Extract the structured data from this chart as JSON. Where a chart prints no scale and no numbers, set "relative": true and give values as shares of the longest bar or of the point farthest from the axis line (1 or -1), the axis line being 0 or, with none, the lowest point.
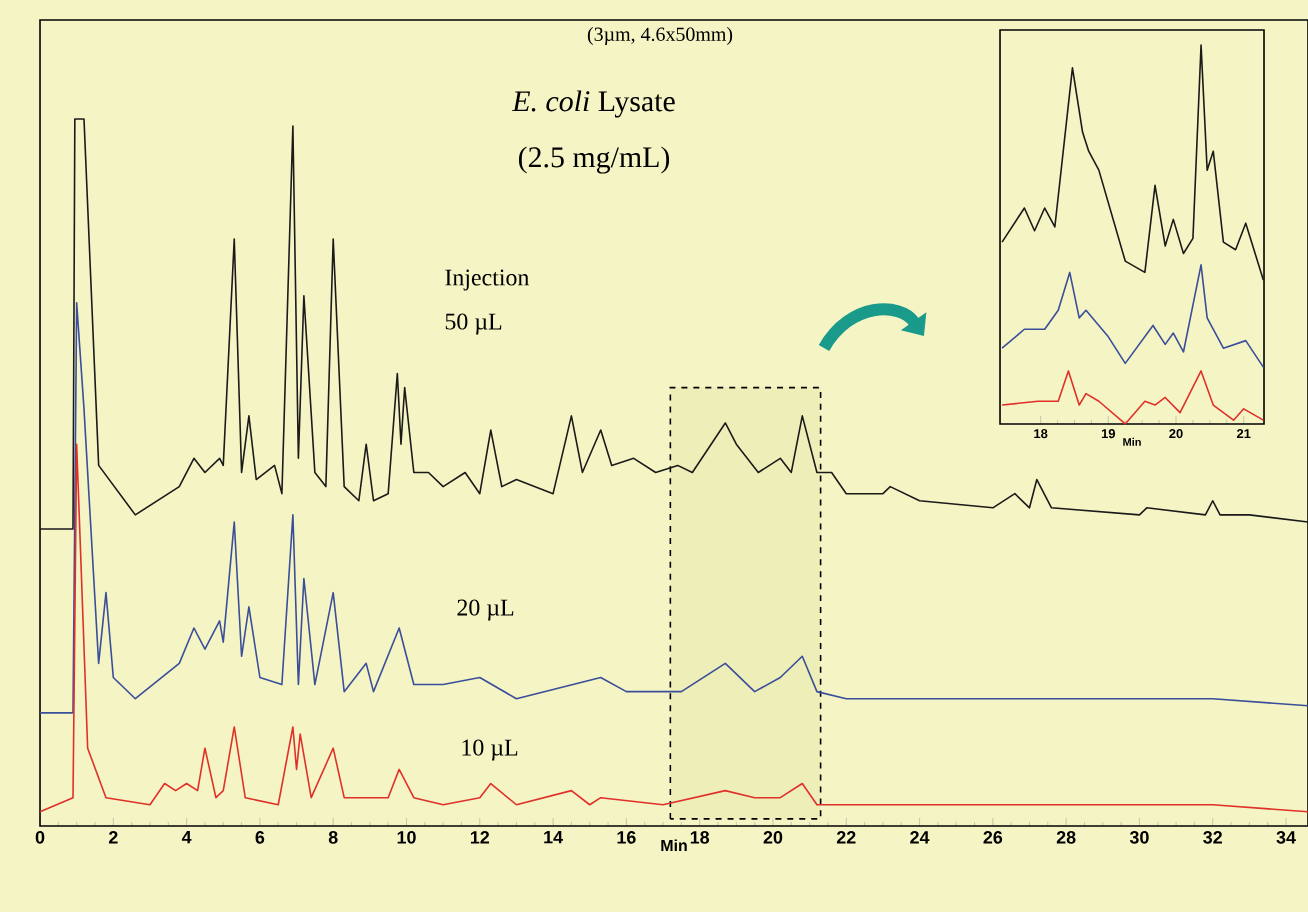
{
  "chart_data": [
    {
      "type": "line",
      "relative": true,
      "marker": "none",
      "line_style": "solid",
      "tick_labels": "x",
      "xlabel": "Min",
      "xlim": [
        0,
        34.6
      ],
      "xticks": [
        0,
        2,
        4,
        6,
        8,
        10,
        12,
        14,
        16,
        18,
        20,
        22,
        24,
        26,
        28,
        30,
        32,
        34
      ],
      "annotations": [
        "(3µm, 4.6x50mm)",
        "*E. coli* Lysate",
        "(2.5 mg/mL)",
        "Injection",
        "50 µL",
        "20 µL",
        "10 µL"
      ],
      "bands": [
        {
          "axis": "x",
          "from": 17.2,
          "to": 21.3
        }
      ],
      "series": [
        {
          "color": "#1a1a1a",
          "x": [
            0,
            0.9,
            0.95,
            1.2,
            1.6,
            2.6,
            3.8,
            4.2,
            4.5,
            4.9,
            5.0,
            5.3,
            5.5,
            5.7,
            5.9,
            6.4,
            6.6,
            6.9,
            7.05,
            7.2,
            7.5,
            7.8,
            8.0,
            8.3,
            8.7,
            8.9,
            9.1,
            9.5,
            9.75,
            9.85,
            9.95,
            10.2,
            10.6,
            11,
            11.6,
            12.0,
            12.3,
            12.6,
            13,
            14.0,
            14.5,
            14.8,
            15.3,
            15.6,
            16.2,
            16.8,
            17.4,
            17.8,
            18.7,
            19.0,
            19.6,
            20.2,
            20.5,
            20.8,
            21.2,
            21.6,
            22,
            23,
            23.2,
            24,
            26,
            26.6,
            27,
            27.2,
            27.6,
            30,
            30.2,
            31.8,
            32,
            32.2,
            33,
            34.6
          ],
          "values": [
            0.42,
            0.42,
            1.0,
            1.0,
            0.51,
            0.44,
            0.48,
            0.52,
            0.5,
            0.52,
            0.51,
            0.83,
            0.5,
            0.58,
            0.49,
            0.51,
            0.47,
            0.99,
            0.52,
            0.75,
            0.5,
            0.48,
            0.83,
            0.48,
            0.46,
            0.54,
            0.46,
            0.47,
            0.64,
            0.54,
            0.62,
            0.5,
            0.5,
            0.48,
            0.5,
            0.47,
            0.56,
            0.48,
            0.49,
            0.47,
            0.58,
            0.5,
            0.56,
            0.51,
            0.52,
            0.5,
            0.51,
            0.5,
            0.57,
            0.54,
            0.5,
            0.52,
            0.5,
            0.58,
            0.5,
            0.5,
            0.47,
            0.47,
            0.48,
            0.46,
            0.45,
            0.47,
            0.45,
            0.49,
            0.45,
            0.44,
            0.45,
            0.44,
            0.46,
            0.44,
            0.44,
            0.43
          ]
        },
        {
          "color": "#3a4e9a",
          "x": [
            0,
            0.9,
            1.0,
            1.2,
            1.6,
            1.8,
            2.0,
            2.6,
            3.8,
            4.2,
            4.5,
            4.9,
            5.0,
            5.3,
            5.5,
            5.7,
            6.0,
            6.6,
            6.9,
            7.05,
            7.2,
            7.5,
            8.0,
            8.3,
            8.9,
            9.1,
            9.8,
            10.2,
            11,
            12,
            13,
            15.3,
            16,
            17.5,
            18.7,
            19.5,
            20.2,
            20.8,
            21.2,
            22,
            24,
            27.2,
            30,
            32,
            34.6
          ],
          "values": [
            0.16,
            0.16,
            0.74,
            0.59,
            0.23,
            0.33,
            0.21,
            0.18,
            0.23,
            0.28,
            0.25,
            0.29,
            0.26,
            0.43,
            0.24,
            0.31,
            0.21,
            0.2,
            0.44,
            0.2,
            0.35,
            0.2,
            0.33,
            0.19,
            0.23,
            0.19,
            0.28,
            0.2,
            0.2,
            0.21,
            0.18,
            0.21,
            0.19,
            0.19,
            0.23,
            0.19,
            0.21,
            0.24,
            0.19,
            0.18,
            0.18,
            0.18,
            0.18,
            0.18,
            0.17
          ]
        },
        {
          "color": "#e0302a",
          "x": [
            0,
            0.9,
            1.0,
            1.3,
            1.8,
            3,
            3.4,
            3.7,
            4.0,
            4.3,
            4.5,
            4.8,
            5.0,
            5.3,
            5.6,
            6.5,
            6.9,
            7.0,
            7.1,
            7.4,
            8.0,
            8.3,
            9.5,
            9.8,
            10.2,
            11,
            12,
            12.3,
            13,
            14.5,
            15,
            15.3,
            17,
            18.7,
            19.5,
            20.2,
            20.8,
            21.2,
            24,
            27,
            30,
            32,
            34.6
          ],
          "values": [
            0.02,
            0.04,
            0.54,
            0.11,
            0.04,
            0.03,
            0.06,
            0.05,
            0.06,
            0.05,
            0.11,
            0.04,
            0.05,
            0.14,
            0.04,
            0.03,
            0.14,
            0.08,
            0.13,
            0.04,
            0.11,
            0.04,
            0.04,
            0.08,
            0.04,
            0.03,
            0.04,
            0.06,
            0.03,
            0.05,
            0.03,
            0.04,
            0.03,
            0.05,
            0.04,
            0.04,
            0.06,
            0.03,
            0.03,
            0.03,
            0.03,
            0.03,
            0.02
          ]
        }
      ]
    },
    {
      "type": "line",
      "relative": true,
      "marker": "none",
      "line_style": "solid",
      "tick_labels": "x",
      "xlabel": "Min",
      "xlim": [
        17.4,
        21.3
      ],
      "xticks": [
        18,
        19,
        20,
        21
      ],
      "series": [
        {
          "color": "#1a1a1a",
          "x": [
            17.43,
            17.76,
            17.91,
            18.06,
            18.21,
            18.47,
            18.62,
            18.71,
            18.86,
            19.25,
            19.54,
            19.69,
            19.84,
            19.96,
            20.11,
            20.25,
            20.37,
            20.46,
            20.55,
            20.7,
            20.88,
            21.03,
            21.29
          ],
          "values": [
            0.48,
            0.57,
            0.51,
            0.57,
            0.52,
            0.94,
            0.77,
            0.72,
            0.67,
            0.43,
            0.4,
            0.63,
            0.47,
            0.54,
            0.45,
            0.49,
            1.0,
            0.67,
            0.72,
            0.48,
            0.46,
            0.53,
            0.38
          ]
        },
        {
          "color": "#3a4e9a",
          "x": [
            17.43,
            17.76,
            18.06,
            18.26,
            18.43,
            18.57,
            18.67,
            19.0,
            19.25,
            19.66,
            19.84,
            19.96,
            20.11,
            20.37,
            20.46,
            20.7,
            21.03,
            21.29
          ],
          "values": [
            0.2,
            0.25,
            0.25,
            0.3,
            0.4,
            0.28,
            0.3,
            0.23,
            0.16,
            0.26,
            0.21,
            0.24,
            0.19,
            0.42,
            0.28,
            0.2,
            0.22,
            0.15
          ]
        },
        {
          "color": "#e0302a",
          "x": [
            17.43,
            17.96,
            18.26,
            18.41,
            18.57,
            18.67,
            18.86,
            19.25,
            19.54,
            19.69,
            19.84,
            20.06,
            20.37,
            20.55,
            20.85,
            21.0,
            21.29
          ],
          "values": [
            0.05,
            0.06,
            0.06,
            0.14,
            0.05,
            0.08,
            0.06,
            0.0,
            0.06,
            0.05,
            0.07,
            0.03,
            0.14,
            0.05,
            0.01,
            0.04,
            0.01
          ]
        }
      ]
    }
  ]
}
